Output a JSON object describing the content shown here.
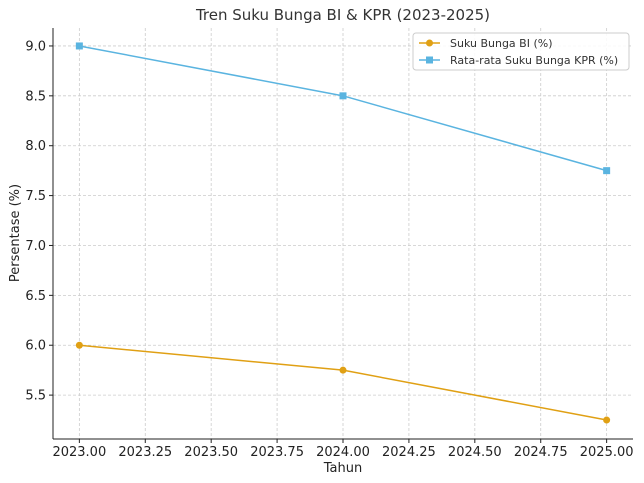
{
  "chart_data": {
    "type": "line",
    "title": "Tren Suku Bunga BI & KPR (2023-2025)",
    "xlabel": "Tahun",
    "ylabel": "Persentase (%)",
    "x": [
      2023,
      2024,
      2025
    ],
    "xlim": [
      2022.9,
      2025.1
    ],
    "ylim": [
      5.06,
      9.18
    ],
    "xticks": [
      "2023.00",
      "2023.25",
      "2023.50",
      "2023.75",
      "2024.00",
      "2024.25",
      "2024.50",
      "2024.75",
      "2025.00"
    ],
    "xtick_values": [
      2023.0,
      2023.25,
      2023.5,
      2023.75,
      2024.0,
      2024.25,
      2024.5,
      2024.75,
      2025.0
    ],
    "yticks": [
      "5.5",
      "6.0",
      "6.5",
      "7.0",
      "7.5",
      "8.0",
      "8.5",
      "9.0"
    ],
    "ytick_values": [
      5.5,
      6.0,
      6.5,
      7.0,
      7.5,
      8.0,
      8.5,
      9.0
    ],
    "grid": true,
    "legend_position": "top-right",
    "series": [
      {
        "name": "Suku Bunga BI (%)",
        "values": [
          6.0,
          5.75,
          5.25
        ],
        "color": "#E0A014",
        "marker": "circle"
      },
      {
        "name": "Rata-rata Suku Bunga KPR (%)",
        "values": [
          9.0,
          8.5,
          7.75
        ],
        "color": "#5AB4E0",
        "marker": "square"
      }
    ]
  }
}
